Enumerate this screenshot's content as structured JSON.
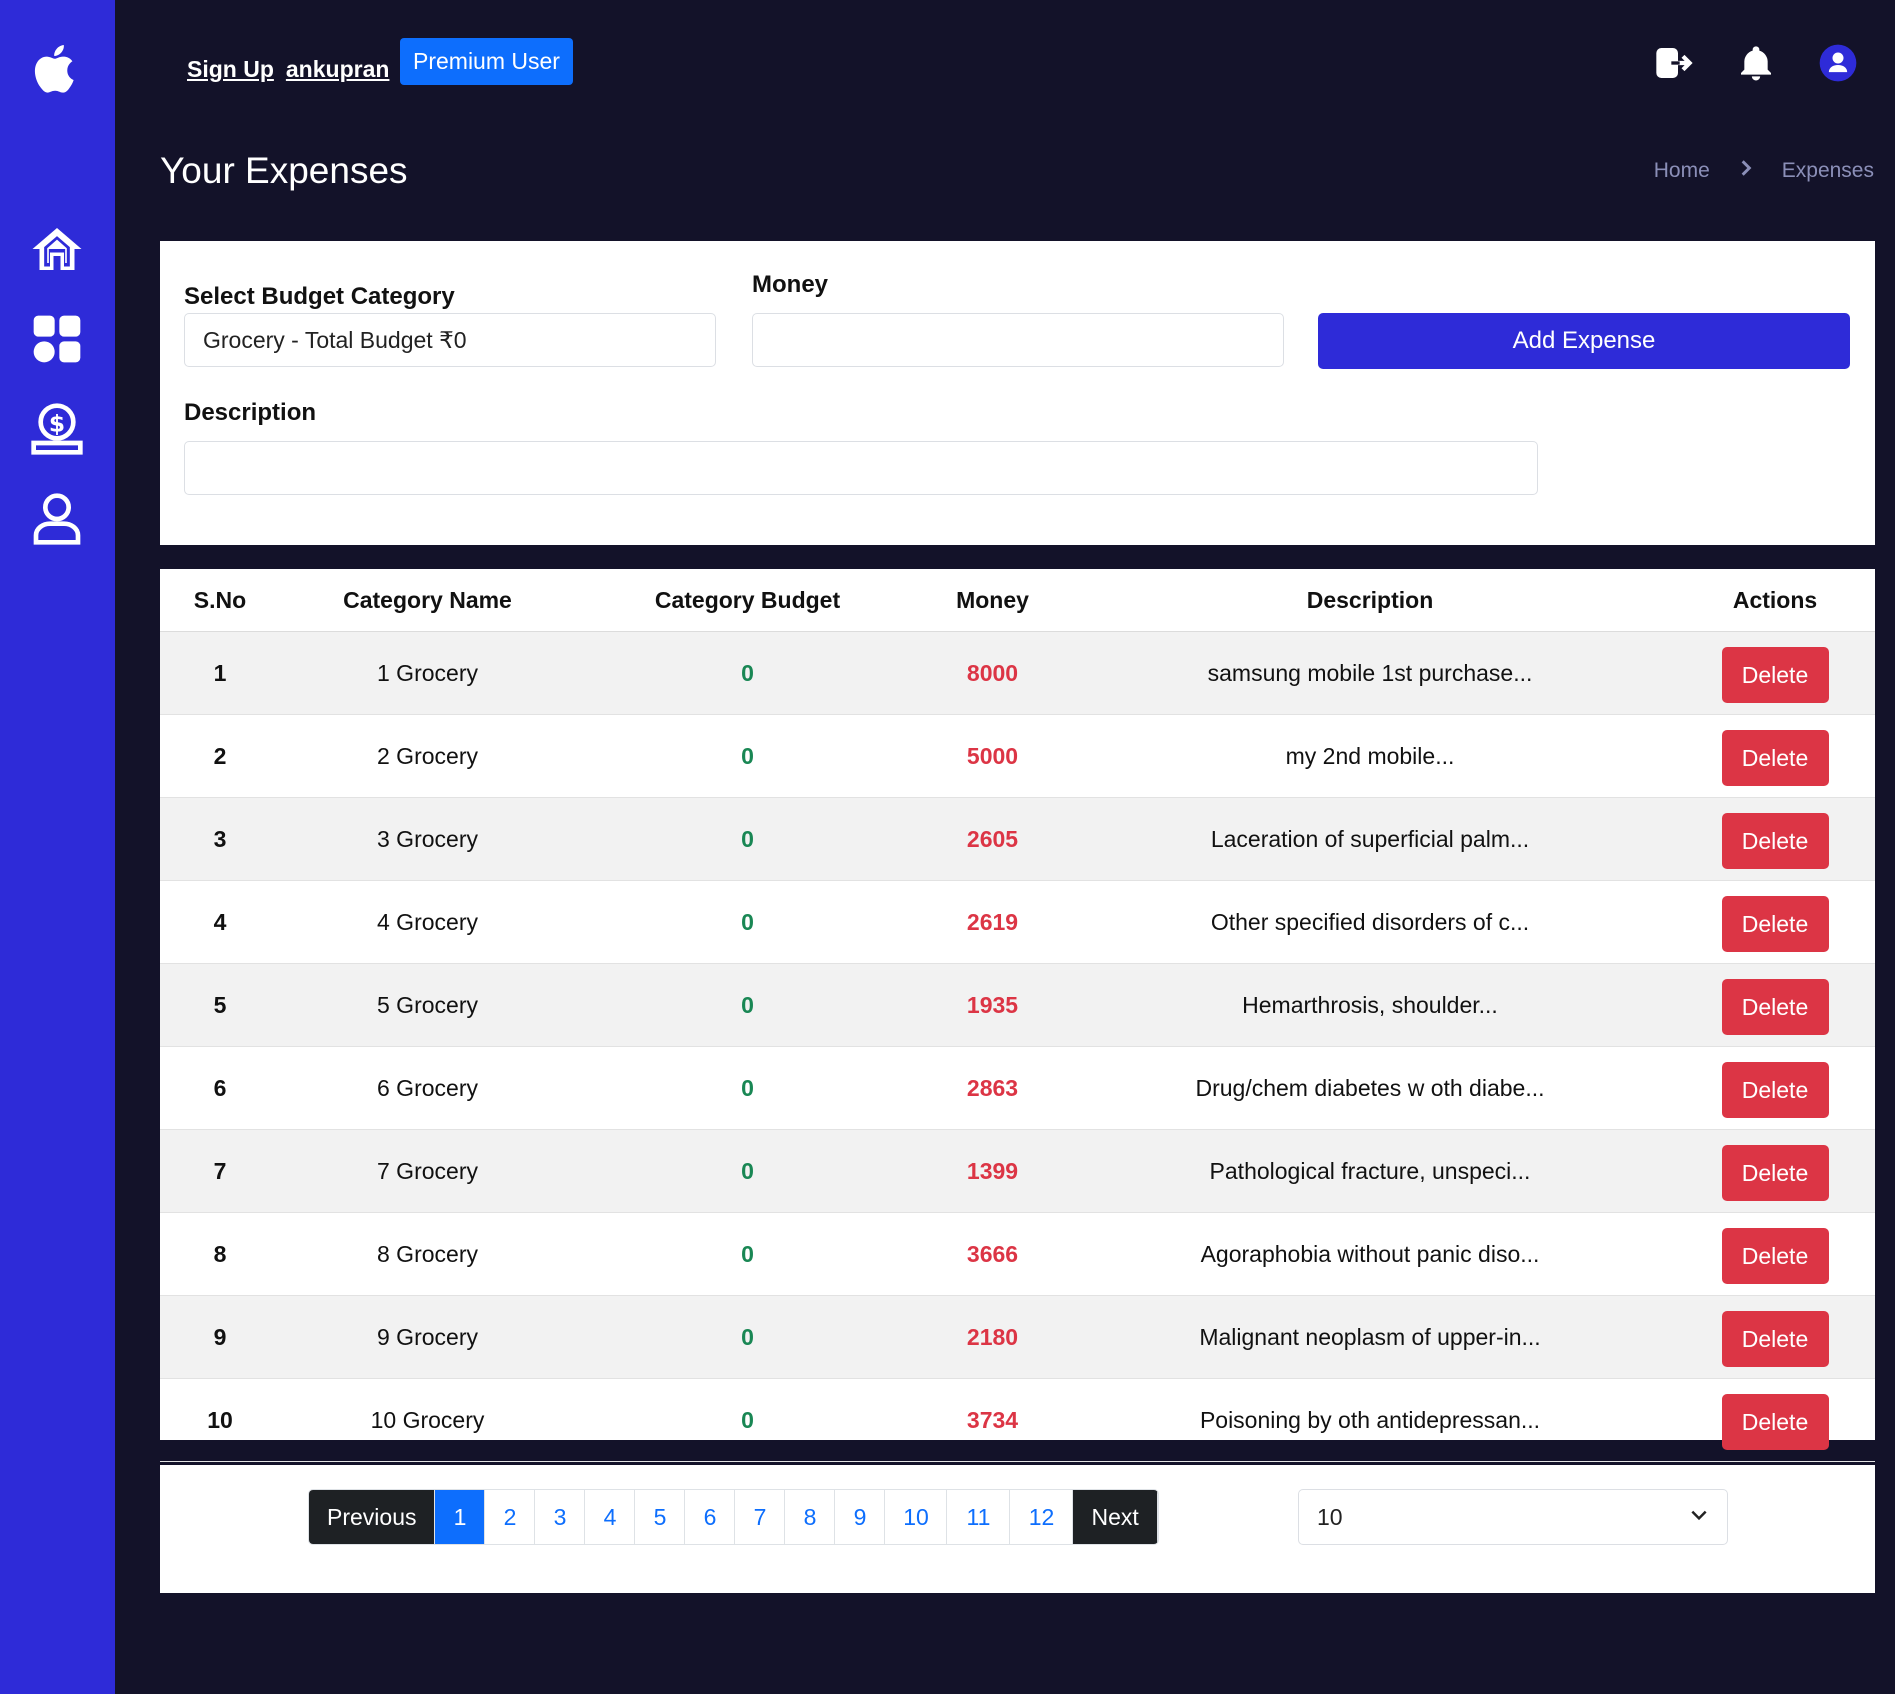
{
  "header": {
    "sign_up": "Sign Up",
    "username": "ankupran",
    "premium_badge": "Premium User",
    "page_title": "Your Expenses",
    "breadcrumb": [
      "Home",
      "Expenses"
    ]
  },
  "sidebar": {
    "items": [
      {
        "icon": "apple-logo-icon"
      },
      {
        "icon": "home-icon"
      },
      {
        "icon": "dashboard-grid-icon"
      },
      {
        "icon": "money-hand-icon"
      },
      {
        "icon": "user-icon"
      }
    ]
  },
  "form": {
    "category_label": "Select Budget Category",
    "category_value": "Grocery - Total Budget ₹0",
    "money_label": "Money",
    "money_value": "",
    "description_label": "Description",
    "description_value": "",
    "add_button": "Add Expense"
  },
  "table": {
    "headers": [
      "S.No",
      "Category Name",
      "Category Budget",
      "Money",
      "Description",
      "Actions"
    ],
    "delete_label": "Delete",
    "rows": [
      {
        "sno": "1",
        "category": "1 Grocery",
        "budget": "0",
        "money": "8000",
        "description": "samsung mobile 1st purchase..."
      },
      {
        "sno": "2",
        "category": "2 Grocery",
        "budget": "0",
        "money": "5000",
        "description": "my 2nd mobile..."
      },
      {
        "sno": "3",
        "category": "3 Grocery",
        "budget": "0",
        "money": "2605",
        "description": "Laceration of superficial palm..."
      },
      {
        "sno": "4",
        "category": "4 Grocery",
        "budget": "0",
        "money": "2619",
        "description": "Other specified disorders of c..."
      },
      {
        "sno": "5",
        "category": "5 Grocery",
        "budget": "0",
        "money": "1935",
        "description": "Hemarthrosis, shoulder..."
      },
      {
        "sno": "6",
        "category": "6 Grocery",
        "budget": "0",
        "money": "2863",
        "description": "Drug/chem diabetes w oth diabe..."
      },
      {
        "sno": "7",
        "category": "7 Grocery",
        "budget": "0",
        "money": "1399",
        "description": "Pathological fracture, unspeci..."
      },
      {
        "sno": "8",
        "category": "8 Grocery",
        "budget": "0",
        "money": "3666",
        "description": "Agoraphobia without panic diso..."
      },
      {
        "sno": "9",
        "category": "9 Grocery",
        "budget": "0",
        "money": "2180",
        "description": "Malignant neoplasm of upper-in..."
      },
      {
        "sno": "10",
        "category": "10 Grocery",
        "budget": "0",
        "money": "3734",
        "description": "Poisoning by oth antidepressan..."
      }
    ]
  },
  "pagination": {
    "previous": "Previous",
    "next": "Next",
    "pages": [
      "1",
      "2",
      "3",
      "4",
      "5",
      "6",
      "7",
      "8",
      "9",
      "10",
      "11",
      "12"
    ],
    "active_page": "1",
    "page_size": "10"
  },
  "colors": {
    "sidebar": "#2e2bd8",
    "background": "#131229",
    "positive": "#198754",
    "negative": "#dc3545",
    "primary": "#0d6efd"
  }
}
